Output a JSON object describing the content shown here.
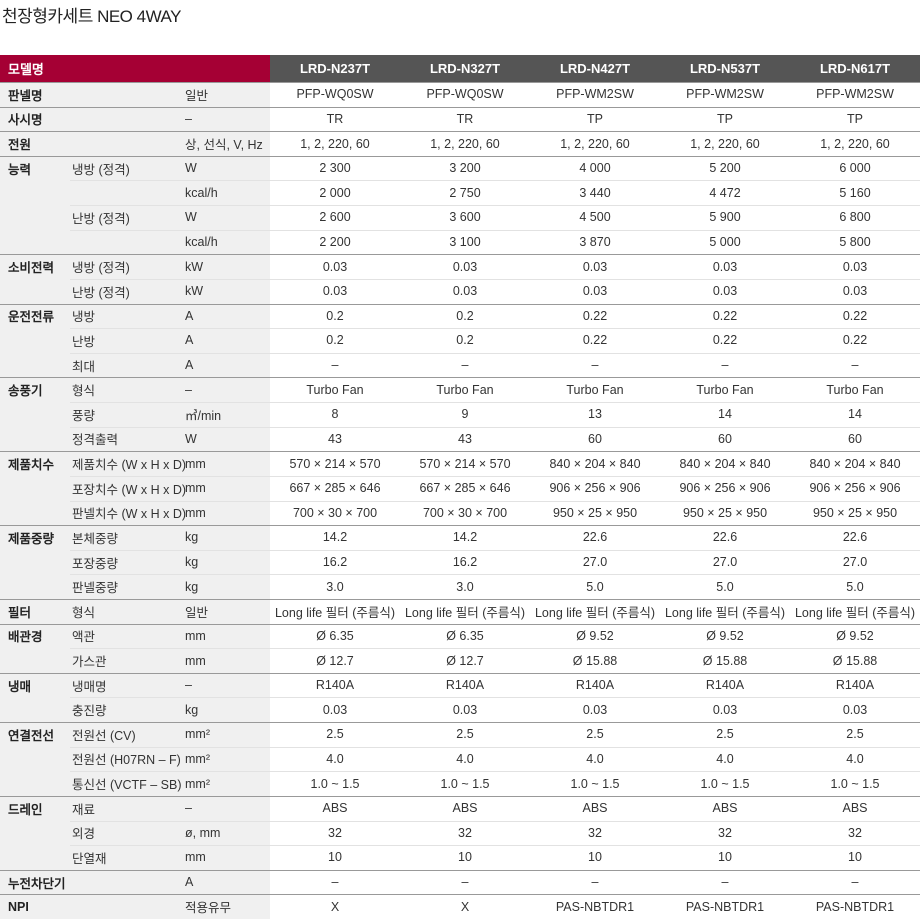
{
  "header": {
    "title": "천장형카세트 NEO 4WAY"
  },
  "table": {
    "header_label": "모델명",
    "models": [
      "LRD-N237T",
      "LRD-N327T",
      "LRD-N427T",
      "LRD-N537T",
      "LRD-N617T"
    ],
    "groups": [
      {
        "label": "판넬명",
        "rows": [
          {
            "unit": "일반",
            "values": [
              "PFP-WQ0SW",
              "PFP-WQ0SW",
              "PFP-WM2SW",
              "PFP-WM2SW",
              "PFP-WM2SW"
            ]
          }
        ]
      },
      {
        "label": "사시명",
        "rows": [
          {
            "unit": "–",
            "values": [
              "TR",
              "TR",
              "TP",
              "TP",
              "TP"
            ]
          }
        ]
      },
      {
        "label": "전원",
        "rows": [
          {
            "unit": "상, 선식, V, Hz",
            "values": [
              "1, 2, 220, 60",
              "1, 2, 220, 60",
              "1, 2, 220, 60",
              "1, 2, 220, 60",
              "1, 2, 220, 60"
            ]
          }
        ]
      },
      {
        "label": "능력",
        "rows": [
          {
            "label": "냉방 (정격)",
            "unit": "W",
            "values": [
              "2 300",
              "3 200",
              "4 000",
              "5 200",
              "6 000"
            ]
          },
          {
            "unit": "kcal/h",
            "values": [
              "2 000",
              "2 750",
              "3 440",
              "4 472",
              "5 160"
            ]
          },
          {
            "label": "난방 (정격)",
            "unit": "W",
            "values": [
              "2 600",
              "3 600",
              "4 500",
              "5 900",
              "6 800"
            ]
          },
          {
            "unit": "kcal/h",
            "values": [
              "2 200",
              "3 100",
              "3 870",
              "5 000",
              "5 800"
            ]
          }
        ]
      },
      {
        "label": "소비전력",
        "rows": [
          {
            "label": "냉방 (정격)",
            "unit": "kW",
            "values": [
              "0.03",
              "0.03",
              "0.03",
              "0.03",
              "0.03"
            ]
          },
          {
            "label": "난방 (정격)",
            "unit": "kW",
            "values": [
              "0.03",
              "0.03",
              "0.03",
              "0.03",
              "0.03"
            ]
          }
        ]
      },
      {
        "label": "운전전류",
        "rows": [
          {
            "label": "냉방",
            "unit": "A",
            "values": [
              "0.2",
              "0.2",
              "0.22",
              "0.22",
              "0.22"
            ]
          },
          {
            "label": "난방",
            "unit": "A",
            "values": [
              "0.2",
              "0.2",
              "0.22",
              "0.22",
              "0.22"
            ]
          },
          {
            "label": "최대",
            "unit": "A",
            "values": [
              "–",
              "–",
              "–",
              "–",
              "–"
            ]
          }
        ]
      },
      {
        "label": "송풍기",
        "rows": [
          {
            "label": "형식",
            "unit": "–",
            "values": [
              "Turbo Fan",
              "Turbo Fan",
              "Turbo Fan",
              "Turbo Fan",
              "Turbo Fan"
            ]
          },
          {
            "label": "풍량",
            "unit": "㎥/min",
            "values": [
              "8",
              "9",
              "13",
              "14",
              "14"
            ]
          },
          {
            "label": "정격출력",
            "unit": "W",
            "values": [
              "43",
              "43",
              "60",
              "60",
              "60"
            ]
          }
        ]
      },
      {
        "label": "제품치수",
        "rows": [
          {
            "label": "제품치수 (W x H x D)",
            "unit": "mm",
            "values": [
              "570 × 214 × 570",
              "570 × 214 × 570",
              "840 × 204 × 840",
              "840 × 204 × 840",
              "840 × 204 × 840"
            ]
          },
          {
            "label": "포장치수 (W x H x D)",
            "unit": "mm",
            "values": [
              "667 × 285 × 646",
              "667 × 285 × 646",
              "906 × 256 × 906",
              "906 × 256 × 906",
              "906 × 256 × 906"
            ]
          },
          {
            "label": "판넬치수 (W x H x D)",
            "unit": "mm",
            "values": [
              "700 × 30 × 700",
              "700 × 30 × 700",
              "950 × 25 × 950",
              "950 × 25 × 950",
              "950 × 25 × 950"
            ]
          }
        ]
      },
      {
        "label": "제품중량",
        "rows": [
          {
            "label": "본체중량",
            "unit": "kg",
            "values": [
              "14.2",
              "14.2",
              "22.6",
              "22.6",
              "22.6"
            ]
          },
          {
            "label": "포장중량",
            "unit": "kg",
            "values": [
              "16.2",
              "16.2",
              "27.0",
              "27.0",
              "27.0"
            ]
          },
          {
            "label": "판넬중량",
            "unit": "kg",
            "values": [
              "3.0",
              "3.0",
              "5.0",
              "5.0",
              "5.0"
            ]
          }
        ]
      },
      {
        "label": "필터",
        "rows": [
          {
            "label": "형식",
            "unit": "일반",
            "values": [
              "Long life 필터 (주름식)",
              "Long life 필터 (주름식)",
              "Long life 필터 (주름식)",
              "Long life 필터 (주름식)",
              "Long life 필터 (주름식)"
            ]
          }
        ]
      },
      {
        "label": "배관경",
        "rows": [
          {
            "label": "액관",
            "unit": "mm",
            "values": [
              "Ø 6.35",
              "Ø 6.35",
              "Ø 9.52",
              "Ø 9.52",
              "Ø 9.52"
            ]
          },
          {
            "label": "가스관",
            "unit": "mm",
            "values": [
              "Ø 12.7",
              "Ø 12.7",
              "Ø 15.88",
              "Ø 15.88",
              "Ø 15.88"
            ]
          }
        ]
      },
      {
        "label": "냉매",
        "rows": [
          {
            "label": "냉매명",
            "unit": "–",
            "values": [
              "R140A",
              "R140A",
              "R140A",
              "R140A",
              "R140A"
            ]
          },
          {
            "label": "충진량",
            "unit": "kg",
            "values": [
              "0.03",
              "0.03",
              "0.03",
              "0.03",
              "0.03"
            ]
          }
        ]
      },
      {
        "label": "연결전선",
        "rows": [
          {
            "label": "전원선 (CV)",
            "unit": "mm²",
            "values": [
              "2.5",
              "2.5",
              "2.5",
              "2.5",
              "2.5"
            ]
          },
          {
            "label": "전원선 (H07RN – F)",
            "unit": "mm²",
            "values": [
              "4.0",
              "4.0",
              "4.0",
              "4.0",
              "4.0"
            ]
          },
          {
            "label": "통신선 (VCTF – SB)",
            "unit": "mm²",
            "values": [
              "1.0 ~ 1.5",
              "1.0 ~ 1.5",
              "1.0 ~ 1.5",
              "1.0 ~ 1.5",
              "1.0 ~ 1.5"
            ]
          }
        ]
      },
      {
        "label": "드레인",
        "rows": [
          {
            "label": "재료",
            "unit": "–",
            "values": [
              "ABS",
              "ABS",
              "ABS",
              "ABS",
              "ABS"
            ]
          },
          {
            "label": "외경",
            "unit": "ø, mm",
            "values": [
              "32",
              "32",
              "32",
              "32",
              "32"
            ]
          },
          {
            "label": "단열재",
            "unit": "mm",
            "values": [
              "10",
              "10",
              "10",
              "10",
              "10"
            ]
          }
        ]
      },
      {
        "label": "누전차단기",
        "rows": [
          {
            "unit": "A",
            "values": [
              "–",
              "–",
              "–",
              "–",
              "–"
            ]
          }
        ]
      },
      {
        "label": "NPI",
        "rows": [
          {
            "unit": "적용유무",
            "values": [
              "X",
              "X",
              "PAS-NBTDR1",
              "PAS-NBTDR1",
              "PAS-NBTDR1"
            ]
          }
        ]
      }
    ]
  }
}
